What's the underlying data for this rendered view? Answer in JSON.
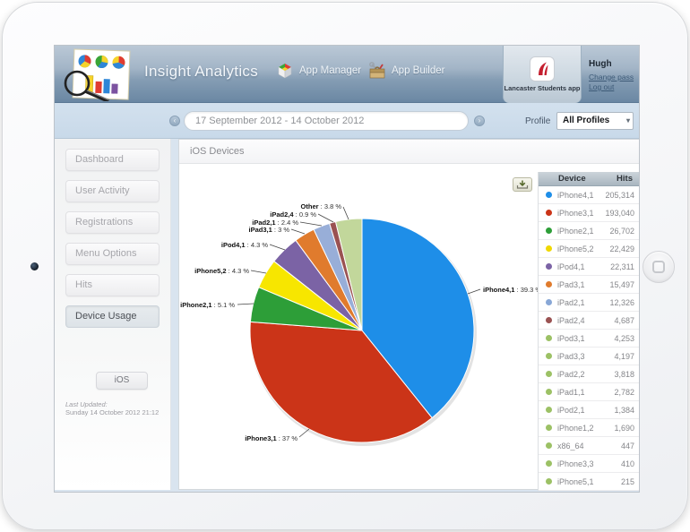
{
  "header": {
    "title": "Insight Analytics",
    "nav": [
      {
        "label": "App Manager"
      },
      {
        "label": "App Builder"
      }
    ],
    "app_panel": {
      "label": "Lancaster Students app"
    },
    "user": {
      "name": "Hugh",
      "change_password": "Change pass",
      "log_out": "Log out"
    }
  },
  "filter_bar": {
    "date_range": "17 September 2012 - 14 October 2012",
    "profile_label": "Profile",
    "profile_value": "All Profiles"
  },
  "sidebar": {
    "items": [
      {
        "label": "Dashboard",
        "active": false
      },
      {
        "label": "User Activity",
        "active": false
      },
      {
        "label": "Registrations",
        "active": false
      },
      {
        "label": "Menu Options",
        "active": false
      },
      {
        "label": "Hits",
        "active": false
      },
      {
        "label": "Device Usage",
        "active": true
      }
    ],
    "sub_tab": "iOS",
    "last_updated_label": "Last Updated:",
    "last_updated_value": "Sunday 14 October 2012 21:12"
  },
  "main": {
    "title": "iOS Devices",
    "table": {
      "columns": [
        "Device",
        "Hits"
      ],
      "rows": [
        {
          "device": "iPhone4,1",
          "hits": "205,314",
          "color": "#1e8ee8"
        },
        {
          "device": "iPhone3,1",
          "hits": "193,040",
          "color": "#cb3418"
        },
        {
          "device": "iPhone2,1",
          "hits": "26,702",
          "color": "#2d9e38"
        },
        {
          "device": "iPhone5,2",
          "hits": "22,429",
          "color": "#f0d800"
        },
        {
          "device": "iPod4,1",
          "hits": "22,311",
          "color": "#7b63a5"
        },
        {
          "device": "iPad3,1",
          "hits": "15,497",
          "color": "#e07b2d"
        },
        {
          "device": "iPad2,1",
          "hits": "12,326",
          "color": "#88a7d6"
        },
        {
          "device": "iPad2,4",
          "hits": "4,687",
          "color": "#9a5252"
        },
        {
          "device": "iPod3,1",
          "hits": "4,253",
          "color": "#9cc165"
        },
        {
          "device": "iPad3,3",
          "hits": "4,197",
          "color": "#9cc165"
        },
        {
          "device": "iPad2,2",
          "hits": "3,818",
          "color": "#9cc165"
        },
        {
          "device": "iPad1,1",
          "hits": "2,782",
          "color": "#9cc165"
        },
        {
          "device": "iPod2,1",
          "hits": "1,384",
          "color": "#9cc165"
        },
        {
          "device": "iPhone1,2",
          "hits": "1,690",
          "color": "#9cc165"
        },
        {
          "device": "x86_64",
          "hits": "447",
          "color": "#9cc165"
        },
        {
          "device": "iPhone3,3",
          "hits": "410",
          "color": "#9cc165"
        },
        {
          "device": "iPhone5,1",
          "hits": "215",
          "color": "#9cc165"
        }
      ]
    }
  },
  "chart_data": {
    "type": "pie",
    "title": "iOS Devices",
    "label_separator": " : ",
    "label_suffix": " %",
    "slices": [
      {
        "label": "iPhone4,1",
        "pct": 39.3,
        "color": "#1e8ee8"
      },
      {
        "label": "iPhone3,1",
        "pct": 37,
        "color": "#cb3418"
      },
      {
        "label": "iPhone2,1",
        "pct": 5.1,
        "color": "#2d9e38"
      },
      {
        "label": "iPhone5,2",
        "pct": 4.3,
        "color": "#f7e600"
      },
      {
        "label": "iPod4,1",
        "pct": 4.3,
        "color": "#7b63a5"
      },
      {
        "label": "iPad3,1",
        "pct": 3,
        "color": "#e07b2d"
      },
      {
        "label": "iPad2,1",
        "pct": 2.4,
        "color": "#98aed8"
      },
      {
        "label": "iPad2,4",
        "pct": 0.9,
        "color": "#9a5252"
      },
      {
        "label": "Other",
        "pct": 3.8,
        "color": "#c2d79b"
      }
    ]
  }
}
